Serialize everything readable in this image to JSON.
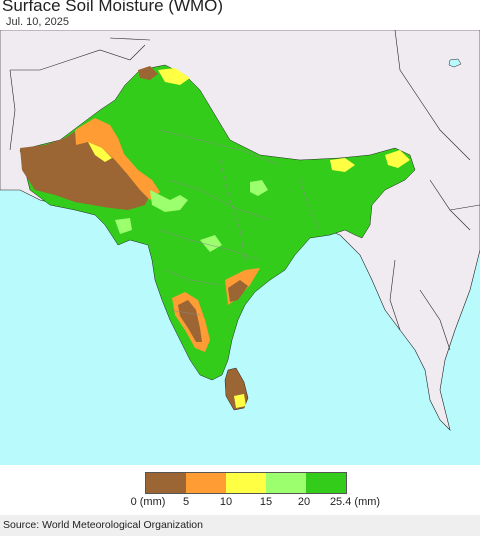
{
  "header": {
    "title": "Surface Soil Moisture (WMO)",
    "date": "Jul. 10, 2025"
  },
  "legend": {
    "colors": [
      "#9c6534",
      "#ff9c33",
      "#ffff44",
      "#9cff6e",
      "#33cc1a"
    ],
    "ticks": [
      "0 (mm)",
      "5",
      "10",
      "15",
      "20",
      "25.4 (mm)"
    ]
  },
  "footer": {
    "source": "Source: World Meteorological Organization"
  },
  "map_colors": {
    "ocean": "#b9fafd",
    "outside_land": "#efebf1",
    "border": "#222222"
  }
}
